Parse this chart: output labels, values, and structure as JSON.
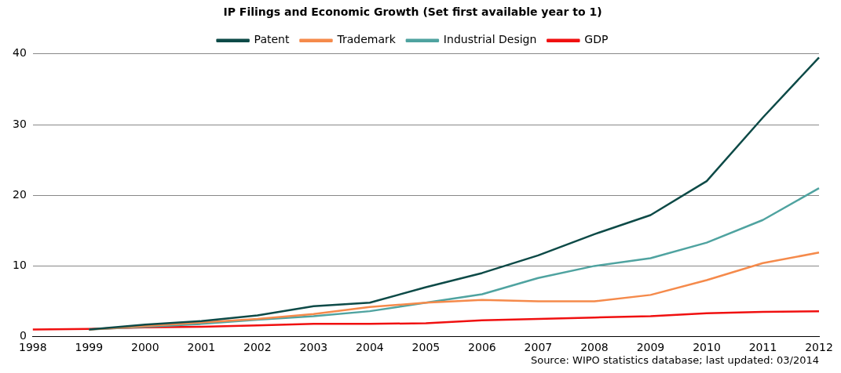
{
  "chart_data": {
    "type": "line",
    "title": "IP Filings and Economic Growth (Set first available year to 1)",
    "categories": [
      "1998",
      "1999",
      "2000",
      "2001",
      "2002",
      "2003",
      "2004",
      "2005",
      "2006",
      "2007",
      "2008",
      "2009",
      "2010",
      "2011",
      "2012"
    ],
    "series": [
      {
        "name": "Patent",
        "color": "#0d4a47",
        "values": [
          null,
          1,
          1.7,
          2.2,
          3.0,
          4.3,
          4.8,
          7.0,
          9.0,
          11.5,
          14.5,
          17.2,
          22,
          31,
          39.5
        ]
      },
      {
        "name": "Trademark",
        "color": "#f58a4b",
        "values": [
          null,
          1,
          1.5,
          2,
          2.5,
          3.2,
          4.2,
          4.8,
          5.2,
          5,
          5,
          5.9,
          8,
          10.4,
          11.9
        ]
      },
      {
        "name": "Industrial Design",
        "color": "#4fa3a0",
        "values": [
          null,
          1,
          1.4,
          1.8,
          2.4,
          2.9,
          3.6,
          4.8,
          6.0,
          8.3,
          10.0,
          11.1,
          13.3,
          16.5,
          21
        ]
      },
      {
        "name": "GDP",
        "color": "#f01010",
        "values": [
          1,
          1.1,
          1.3,
          1.4,
          1.6,
          1.8,
          1.8,
          1.9,
          2.3,
          2.5,
          2.7,
          2.9,
          3.3,
          3.5,
          3.6
        ]
      }
    ],
    "ylim": [
      0,
      40
    ],
    "yticks": [
      0,
      10,
      20,
      30,
      40
    ],
    "grid": "y",
    "legend": "top",
    "marker": "none",
    "line_style": "solid",
    "annotations": [
      "Source: WIPO statistics database; last updated: 03/2014"
    ]
  }
}
